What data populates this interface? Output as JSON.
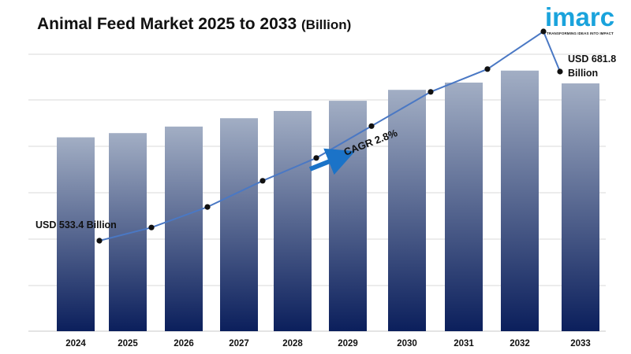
{
  "header": {
    "title": "Animal Feed Market 2025 to 2033",
    "title_unit": "(Billion)"
  },
  "logo": {
    "word": "imarc",
    "tagline": "TRANSFORMING IDEAS INTO IMPACT"
  },
  "chart_data": {
    "type": "bar",
    "title": "Animal Feed Market 2025 to 2033 (Billion)",
    "xlabel": "",
    "ylabel": "",
    "categories": [
      "2024",
      "2025",
      "2026",
      "2027",
      "2028",
      "2029",
      "2030",
      "2031",
      "2032",
      "2033"
    ],
    "values": [
      533.4,
      545,
      563,
      586,
      606,
      634,
      664,
      684,
      717,
      681.8
    ],
    "trend_line": [
      533.4,
      545,
      563,
      586,
      606,
      634,
      664,
      684,
      717,
      681.8
    ],
    "grid": true,
    "annotations": {
      "start_label": "USD 533.4 Billion",
      "end_label_line1": "USD 681.8",
      "end_label_line2": "Billion",
      "cagr_label": "CAGR 2.8%"
    },
    "colors": {
      "bar_top": "#a2aec4",
      "bar_bottom": "#0b1f5c",
      "line": "#4a78c4",
      "point": "#111111",
      "arrow": "#1b73c8",
      "grid": "#d9d9d9"
    }
  }
}
